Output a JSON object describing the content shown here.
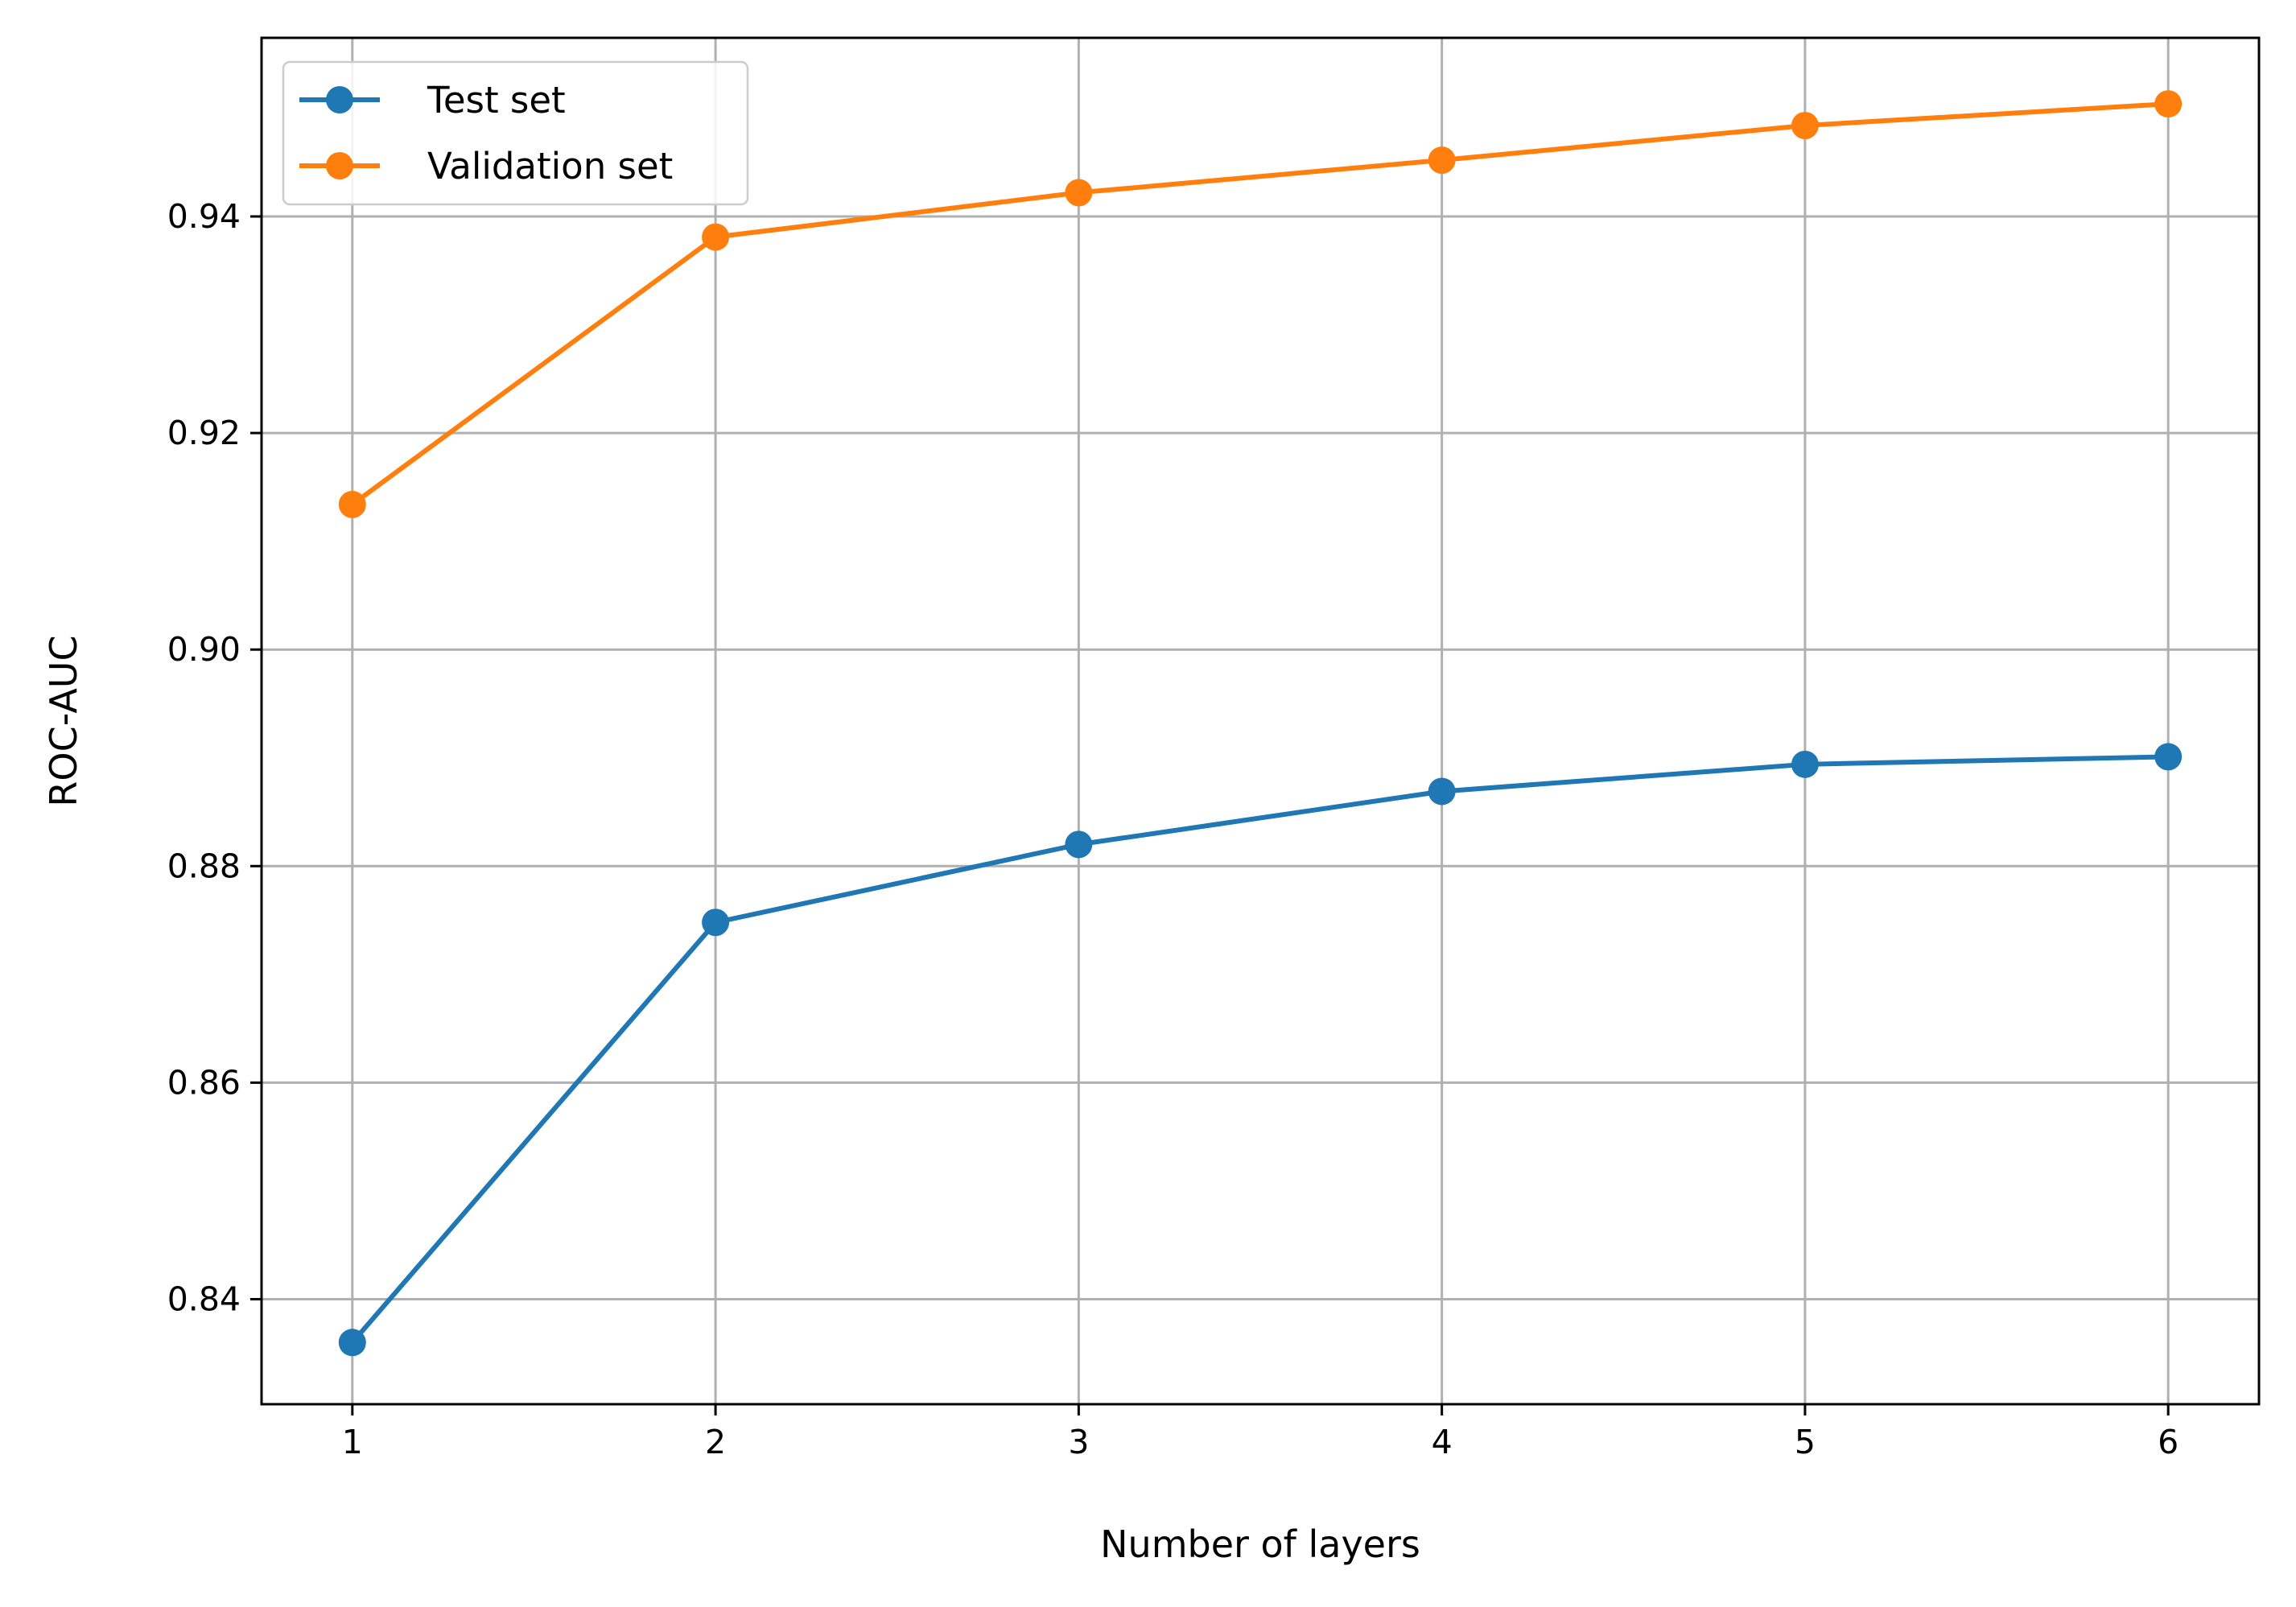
{
  "chart_data": {
    "type": "line",
    "title": "",
    "xlabel": "Number of layers",
    "ylabel": "ROC-AUC",
    "x": [
      1,
      2,
      3,
      4,
      5,
      6
    ],
    "xlim": [
      0.75,
      6.25
    ],
    "ylim": [
      0.8303,
      0.9565
    ],
    "xticks": [
      1,
      2,
      3,
      4,
      5,
      6
    ],
    "yticks": [
      0.84,
      0.86,
      0.88,
      0.9,
      0.92,
      0.94
    ],
    "ytick_labels": [
      "0.84",
      "0.86",
      "0.88",
      "0.90",
      "0.92",
      "0.94"
    ],
    "grid": true,
    "legend_position": "top-left",
    "series": [
      {
        "name": "Test set",
        "color": "#1f77b4",
        "marker": "circle",
        "values": [
          0.836,
          0.8748,
          0.882,
          0.8869,
          0.8894,
          0.8901
        ]
      },
      {
        "name": "Validation set",
        "color": "#ff7f0e",
        "marker": "circle",
        "values": [
          0.9134,
          0.9381,
          0.9422,
          0.9452,
          0.9484,
          0.9504
        ]
      }
    ]
  }
}
